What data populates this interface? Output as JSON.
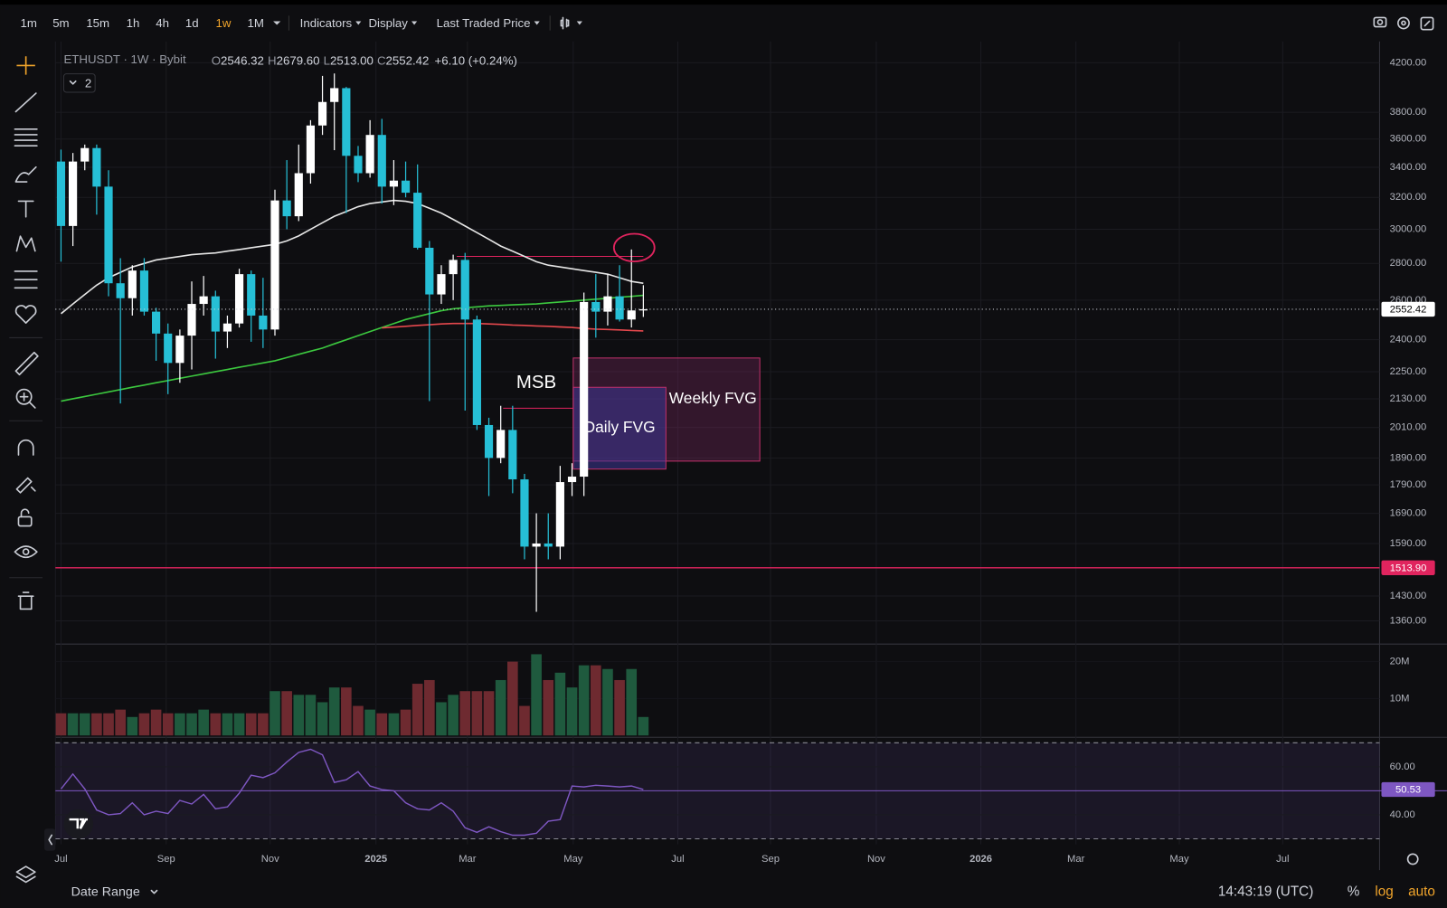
{
  "toolbar": {
    "timeframes": [
      "1m",
      "5m",
      "15m",
      "1h",
      "4h",
      "1d",
      "1w",
      "1M"
    ],
    "active_timeframe": "1w",
    "menus": [
      "Indicators",
      "Display",
      "Last Traded Price"
    ]
  },
  "legend": {
    "title": "ETHUSDT · 1W · Bybit",
    "ohlc": [
      {
        "name": "O",
        "value": "2546.32"
      },
      {
        "name": "H",
        "value": "2679.60"
      },
      {
        "name": "L",
        "value": "2513.00"
      },
      {
        "name": "C",
        "value": "2552.42"
      }
    ],
    "change": "+6.10 (+0.24%)",
    "collapsed_count": 2
  },
  "footer": {
    "date_range": "Date Range",
    "time": "14:43:19 (UTC)",
    "items": [
      {
        "text": "%",
        "active": false
      },
      {
        "text": "log",
        "active": true
      },
      {
        "text": "auto",
        "active": true
      }
    ],
    "active_color": "#f0a42b"
  },
  "chart_data": [
    {
      "type": "candlestick",
      "log": true,
      "grid": true,
      "up_color": "#ffffff",
      "down_color": "#26bfd6",
      "x": [
        0,
        1,
        2,
        3,
        4,
        5,
        6,
        7,
        8,
        9,
        10,
        11,
        12,
        13,
        14,
        15,
        16,
        17,
        18,
        19,
        20,
        21,
        22,
        23,
        24,
        25,
        26,
        27,
        28,
        29,
        30,
        31,
        32,
        33,
        34,
        35,
        36,
        37,
        38,
        39,
        40,
        41,
        42,
        43,
        44,
        45,
        46,
        47,
        48,
        49
      ],
      "open": [
        3440,
        3020,
        3440,
        3535,
        3270,
        2690,
        2610,
        2760,
        2540,
        2430,
        2290,
        2420,
        2580,
        2620,
        2440,
        2480,
        2740,
        2520,
        2450,
        3180,
        3080,
        3360,
        3700,
        3880,
        3990,
        3480,
        3360,
        3630,
        3270,
        3310,
        3230,
        2890,
        2630,
        2740,
        2820,
        2500,
        2020,
        1890,
        2000,
        1810,
        1580,
        1590,
        1580,
        1800,
        1820,
        2590,
        2540,
        2620,
        2500,
        2546.32
      ],
      "high": [
        3524,
        3500,
        3560,
        3560,
        3380,
        2830,
        2790,
        2830,
        2560,
        2480,
        2450,
        2700,
        2730,
        2650,
        2520,
        2770,
        2760,
        2720,
        3250,
        3450,
        3560,
        3740,
        4090,
        4110,
        4000,
        3550,
        3740,
        3750,
        3450,
        3440,
        3420,
        2930,
        2790,
        2850,
        2860,
        2520,
        2050,
        2100,
        2100,
        1830,
        1690,
        1690,
        1860,
        1870,
        2640,
        2740,
        2740,
        2790,
        2880,
        2679.6
      ],
      "low": [
        2810,
        2900,
        3380,
        3090,
        2620,
        2110,
        2520,
        2520,
        2300,
        2150,
        2200,
        2260,
        2520,
        2310,
        2360,
        2460,
        2390,
        2360,
        2420,
        3000,
        3050,
        3290,
        3630,
        3520,
        3100,
        3300,
        3330,
        3160,
        3150,
        3200,
        2880,
        2120,
        2580,
        2600,
        2080,
        2000,
        1750,
        1870,
        1760,
        1540,
        1385,
        1540,
        1540,
        1750,
        1750,
        2410,
        2470,
        2490,
        2460,
        2513
      ],
      "close": [
        3020,
        3440,
        3535,
        3270,
        2690,
        2610,
        2760,
        2540,
        2430,
        2290,
        2420,
        2580,
        2620,
        2440,
        2480,
        2740,
        2520,
        2450,
        3180,
        3080,
        3360,
        3700,
        3880,
        3990,
        3480,
        3360,
        3630,
        3270,
        3310,
        3230,
        2890,
        2630,
        2740,
        2820,
        2500,
        2020,
        1890,
        2000,
        1810,
        1580,
        1590,
        1580,
        1800,
        1820,
        2590,
        2540,
        2620,
        2500,
        2546.32,
        2552.42
      ],
      "series": [
        {
          "color": "#e6e6e6",
          "values": [
            2530,
            2580,
            2630,
            2680,
            2720,
            2750,
            2780,
            2800,
            2820,
            2830,
            2840,
            2850,
            2855,
            2860,
            2870,
            2880,
            2890,
            2900,
            2910,
            2930,
            2960,
            3000,
            3040,
            3080,
            3110,
            3140,
            3160,
            3170,
            3180,
            3175,
            3160,
            3130,
            3100,
            3060,
            3020,
            2980,
            2940,
            2900,
            2870,
            2840,
            2810,
            2790,
            2780,
            2770,
            2760,
            2750,
            2740,
            2720,
            2700,
            2690
          ]
        },
        {
          "color": "#3cc83f",
          "values": [
            2120,
            2130,
            2140,
            2150,
            2160,
            2170,
            2180,
            2190,
            2200,
            2210,
            2220,
            2230,
            2240,
            2250,
            2260,
            2270,
            2280,
            2290,
            2300,
            2315,
            2330,
            2345,
            2360,
            2380,
            2400,
            2420,
            2440,
            2460,
            2480,
            2500,
            2515,
            2530,
            2545,
            2555,
            2560,
            2565,
            2570,
            2572,
            2575,
            2578,
            2580,
            2585,
            2590,
            2595,
            2600,
            2605,
            2610,
            2615,
            2620,
            2625
          ]
        },
        {
          "color": "#e5484d",
          "values": [
            null,
            null,
            null,
            null,
            null,
            null,
            null,
            null,
            null,
            null,
            null,
            null,
            null,
            null,
            null,
            null,
            null,
            null,
            null,
            null,
            null,
            null,
            null,
            null,
            null,
            null,
            null,
            2458,
            2462,
            2466,
            2470,
            2474,
            2478,
            2480,
            2480,
            2480,
            2478,
            2475,
            2472,
            2470,
            2468,
            2466,
            2463,
            2460,
            2455,
            2452,
            2450,
            2448,
            2445,
            2443
          ]
        }
      ],
      "xlim": [
        -0.47,
        110.95
      ],
      "xticks": [
        {
          "value": 0,
          "label": "Jul"
        },
        {
          "value": 8.85,
          "label": "Sep"
        },
        {
          "value": 17.6,
          "label": "Nov"
        },
        {
          "value": 26.5,
          "label": "2025"
        },
        {
          "value": 34.2,
          "label": "Mar"
        },
        {
          "value": 43.1,
          "label": "May"
        },
        {
          "value": 51.9,
          "label": "Jul"
        },
        {
          "value": 59.7,
          "label": "Sep"
        },
        {
          "value": 68.6,
          "label": "Nov"
        },
        {
          "value": 77.4,
          "label": "2026"
        },
        {
          "value": 85.4,
          "label": "Mar"
        },
        {
          "value": 94.1,
          "label": "May"
        },
        {
          "value": 102.8,
          "label": "Jul"
        }
      ],
      "ylim": [
        1300,
        4384
      ],
      "yticks": [
        {
          "value": 4200,
          "label": "4200.00"
        },
        {
          "value": 3800,
          "label": "3800.00"
        },
        {
          "value": 3600,
          "label": "3600.00"
        },
        {
          "value": 3400,
          "label": "3400.00"
        },
        {
          "value": 3200,
          "label": "3200.00"
        },
        {
          "value": 3000,
          "label": "3000.00"
        },
        {
          "value": 2800,
          "label": "2800.00"
        },
        {
          "value": 2600,
          "label": "2600.00"
        },
        {
          "value": 2400,
          "label": "2400.00"
        },
        {
          "value": 2250,
          "label": "2250.00"
        },
        {
          "value": 2130,
          "label": "2130.00"
        },
        {
          "value": 2010,
          "label": "2010.00"
        },
        {
          "value": 1890,
          "label": "1890.00"
        },
        {
          "value": 1790,
          "label": "1790.00"
        },
        {
          "value": 1690,
          "label": "1690.00"
        },
        {
          "value": 1590,
          "label": "1590.00"
        },
        {
          "value": 1430,
          "label": "1430.00"
        },
        {
          "value": 1360,
          "label": "1360.00"
        }
      ],
      "last_price": {
        "value": 2552.42,
        "label": "2552.42"
      },
      "hlines": [
        {
          "value": 1513.9,
          "label": "1513.90",
          "color": "#e0245e"
        }
      ],
      "segments": [
        {
          "y": 2840,
          "x": [
            33.3,
            49
          ],
          "color": "#e0245e"
        },
        {
          "y": 2090,
          "x": [
            37.2,
            43.1
          ],
          "color": "#e0245e",
          "label": "MSB"
        }
      ],
      "boxes": [
        {
          "label": "Weekly FVG",
          "top": 2313,
          "bottom": 1878,
          "x": [
            43.1,
            58.8
          ],
          "fill": "rgba(120,40,95,0.35)",
          "stroke": "#c0306a"
        },
        {
          "label": "Daily FVG",
          "top": 2180,
          "bottom": 1848,
          "x": [
            43.1,
            50.9
          ],
          "fill": "rgba(60,55,150,0.55)",
          "stroke": "#c0306a"
        }
      ]
    },
    {
      "type": "bar",
      "up_color": "#1f5a3e",
      "down_color": "#6e2a30",
      "values": [
        6,
        6,
        6,
        6,
        6,
        7,
        5,
        6,
        7,
        6,
        6,
        6,
        7,
        6,
        6,
        6,
        6,
        6,
        12,
        12,
        11,
        11,
        9,
        13,
        13,
        8,
        7,
        6,
        6,
        7,
        14,
        15,
        9,
        11,
        12,
        12,
        12,
        15,
        20,
        8,
        22,
        15,
        17,
        13,
        19,
        19,
        18,
        15,
        18,
        5
      ],
      "ylim": [
        0,
        24.25
      ],
      "yticks": [
        {
          "value": 20,
          "label": "20M"
        },
        {
          "value": 10,
          "label": "10M"
        }
      ]
    },
    {
      "type": "line",
      "color": "#7e57c2",
      "values": [
        50.8,
        57,
        50.8,
        42,
        40,
        40.5,
        45,
        40,
        41.5,
        40.5,
        46,
        44.5,
        48.5,
        42.5,
        43.3,
        49,
        56.5,
        55.5,
        57.5,
        62,
        66,
        67.3,
        65,
        53.5,
        54.6,
        58,
        52,
        50.5,
        50,
        45,
        42.5,
        42,
        45,
        41.5,
        34.6,
        32.7,
        35,
        33,
        31.5,
        31.5,
        32.3,
        37.3,
        38,
        52,
        51.6,
        52.3,
        52,
        51.6,
        52,
        50.53
      ],
      "ylim": [
        27.7,
        71.9
      ],
      "yticks": [
        {
          "value": 60,
          "label": "60.00"
        },
        {
          "value": 40,
          "label": "40.00"
        }
      ],
      "band": [
        30,
        70
      ],
      "midline": 50,
      "last": {
        "value": 50.53,
        "label": "50.53"
      }
    }
  ]
}
